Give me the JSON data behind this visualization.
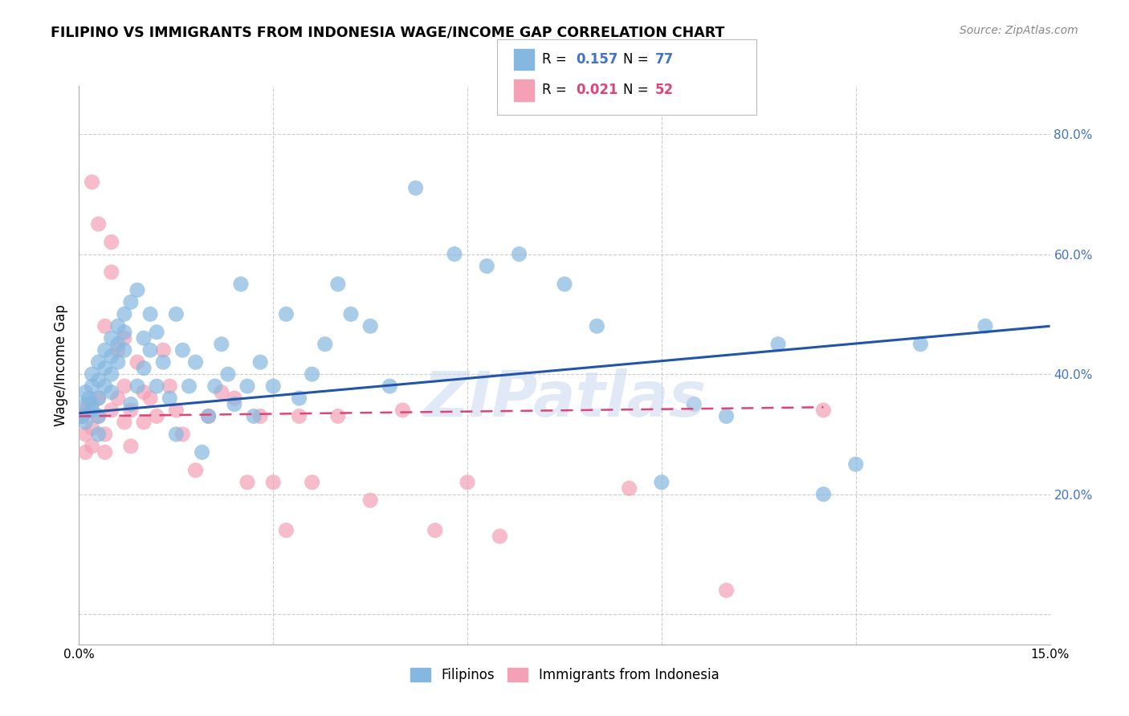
{
  "title": "FILIPINO VS IMMIGRANTS FROM INDONESIA WAGE/INCOME GAP CORRELATION CHART",
  "source": "Source: ZipAtlas.com",
  "ylabel": "Wage/Income Gap",
  "xlim": [
    0.0,
    0.15
  ],
  "ylim": [
    -0.05,
    0.88
  ],
  "yticks_right": [
    0.2,
    0.4,
    0.6,
    0.8
  ],
  "ytick_labels_right": [
    "20.0%",
    "40.0%",
    "60.0%",
    "80.0%"
  ],
  "watermark": "ZIPatlas",
  "filipino_color": "#85b8e0",
  "indonesia_color": "#f4a0b5",
  "filipino_line_color": "#2255aa",
  "indonesia_line_color": "#dd4477",
  "R_filipino": 0.157,
  "N_filipino": 77,
  "R_indonesia": 0.021,
  "N_indonesia": 52,
  "legend_label_filipino": "Filipinos",
  "legend_label_indonesia": "Immigrants from Indonesia",
  "filipino_scatter_x": [
    0.0005,
    0.001,
    0.001,
    0.001,
    0.0015,
    0.002,
    0.002,
    0.002,
    0.002,
    0.003,
    0.003,
    0.003,
    0.003,
    0.003,
    0.004,
    0.004,
    0.004,
    0.005,
    0.005,
    0.005,
    0.005,
    0.006,
    0.006,
    0.006,
    0.007,
    0.007,
    0.007,
    0.008,
    0.008,
    0.009,
    0.009,
    0.01,
    0.01,
    0.011,
    0.011,
    0.012,
    0.012,
    0.013,
    0.014,
    0.015,
    0.015,
    0.016,
    0.017,
    0.018,
    0.019,
    0.02,
    0.021,
    0.022,
    0.023,
    0.024,
    0.025,
    0.026,
    0.027,
    0.028,
    0.03,
    0.032,
    0.034,
    0.036,
    0.038,
    0.04,
    0.042,
    0.045,
    0.048,
    0.052,
    0.058,
    0.063,
    0.068,
    0.075,
    0.08,
    0.09,
    0.095,
    0.1,
    0.108,
    0.115,
    0.12,
    0.13,
    0.14
  ],
  "filipino_scatter_y": [
    0.33,
    0.37,
    0.35,
    0.32,
    0.36,
    0.38,
    0.35,
    0.4,
    0.34,
    0.42,
    0.39,
    0.36,
    0.33,
    0.3,
    0.44,
    0.41,
    0.38,
    0.46,
    0.43,
    0.4,
    0.37,
    0.48,
    0.45,
    0.42,
    0.5,
    0.47,
    0.44,
    0.52,
    0.35,
    0.54,
    0.38,
    0.46,
    0.41,
    0.5,
    0.44,
    0.38,
    0.47,
    0.42,
    0.36,
    0.5,
    0.3,
    0.44,
    0.38,
    0.42,
    0.27,
    0.33,
    0.38,
    0.45,
    0.4,
    0.35,
    0.55,
    0.38,
    0.33,
    0.42,
    0.38,
    0.5,
    0.36,
    0.4,
    0.45,
    0.55,
    0.5,
    0.48,
    0.38,
    0.71,
    0.6,
    0.58,
    0.6,
    0.55,
    0.48,
    0.22,
    0.35,
    0.33,
    0.45,
    0.2,
    0.25,
    0.45,
    0.48
  ],
  "indonesia_scatter_x": [
    0.0005,
    0.001,
    0.001,
    0.001,
    0.0015,
    0.002,
    0.002,
    0.002,
    0.003,
    0.003,
    0.003,
    0.004,
    0.004,
    0.004,
    0.005,
    0.005,
    0.005,
    0.006,
    0.006,
    0.007,
    0.007,
    0.007,
    0.008,
    0.008,
    0.009,
    0.01,
    0.01,
    0.011,
    0.012,
    0.013,
    0.014,
    0.015,
    0.016,
    0.018,
    0.02,
    0.022,
    0.024,
    0.026,
    0.028,
    0.03,
    0.032,
    0.034,
    0.036,
    0.04,
    0.045,
    0.05,
    0.055,
    0.06,
    0.065,
    0.085,
    0.1,
    0.115
  ],
  "indonesia_scatter_y": [
    0.33,
    0.3,
    0.27,
    0.34,
    0.35,
    0.31,
    0.28,
    0.72,
    0.36,
    0.33,
    0.65,
    0.3,
    0.27,
    0.48,
    0.62,
    0.34,
    0.57,
    0.44,
    0.36,
    0.46,
    0.38,
    0.32,
    0.34,
    0.28,
    0.42,
    0.37,
    0.32,
    0.36,
    0.33,
    0.44,
    0.38,
    0.34,
    0.3,
    0.24,
    0.33,
    0.37,
    0.36,
    0.22,
    0.33,
    0.22,
    0.14,
    0.33,
    0.22,
    0.33,
    0.19,
    0.34,
    0.14,
    0.22,
    0.13,
    0.21,
    0.04,
    0.34
  ],
  "fil_line_x": [
    0.0,
    0.15
  ],
  "fil_line_y": [
    0.335,
    0.48
  ],
  "ind_line_x": [
    0.0,
    0.115
  ],
  "ind_line_y": [
    0.33,
    0.345
  ]
}
